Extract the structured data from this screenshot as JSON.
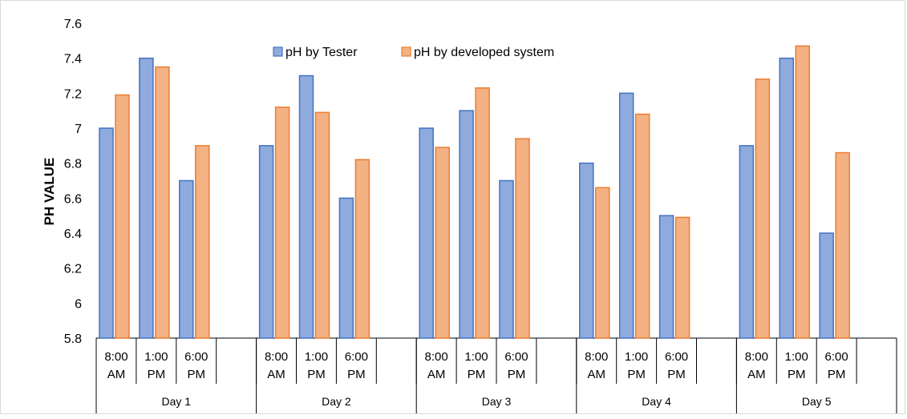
{
  "chart_data": {
    "type": "bar",
    "title": "",
    "xlabel": "",
    "ylabel": "PH VALUE",
    "ylim": [
      5.8,
      7.6
    ],
    "yticks": [
      "5.8",
      "6",
      "6.2",
      "6.4",
      "6.6",
      "6.8",
      "7",
      "7.2",
      "7.4",
      "7.6"
    ],
    "groups": [
      "Day 1",
      "Day 2",
      "Day 3",
      "Day 4",
      "Day 5"
    ],
    "category_lines": [
      [
        "8:00",
        "AM"
      ],
      [
        "1:00",
        "PM"
      ],
      [
        "6:00",
        "PM"
      ]
    ],
    "categories": [
      "Day 1 8:00 AM",
      "Day 1 1:00 PM",
      "Day 1 6:00 PM",
      "Day 2 8:00 AM",
      "Day 2 1:00 PM",
      "Day 2 6:00 PM",
      "Day 3 8:00 AM",
      "Day 3 1:00 PM",
      "Day 3 6:00 PM",
      "Day 4 8:00 AM",
      "Day 4 1:00 PM",
      "Day 4 6:00 PM",
      "Day 5 8:00 AM",
      "Day 5 1:00 PM",
      "Day 5 6:00 PM"
    ],
    "series": [
      {
        "name": "pH by Tester",
        "color": "#8FAADC",
        "stroke": "#4472C4",
        "values": [
          7.0,
          7.4,
          6.7,
          6.9,
          7.3,
          6.6,
          7.0,
          7.1,
          6.7,
          6.8,
          7.2,
          6.5,
          6.9,
          7.4,
          6.4
        ]
      },
      {
        "name": "pH by developed system",
        "color": "#F4B183",
        "stroke": "#ED7D31",
        "values": [
          7.19,
          7.35,
          6.9,
          7.12,
          7.09,
          6.82,
          6.89,
          7.23,
          6.94,
          6.66,
          7.08,
          6.49,
          7.28,
          7.47,
          6.86
        ]
      }
    ],
    "legend_position": "top",
    "grid": false
  }
}
